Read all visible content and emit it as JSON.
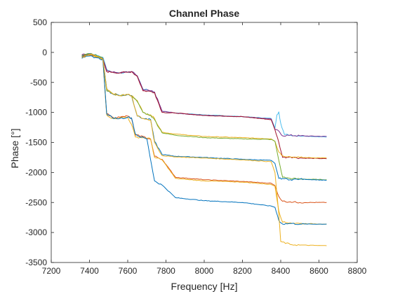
{
  "chart_data": {
    "type": "line",
    "title": "Channel Phase",
    "xlabel": "Frequency [Hz]",
    "ylabel": "Phase [°]",
    "xlim": [
      7200,
      8800
    ],
    "ylim": [
      -3500,
      500
    ],
    "x_ticks": [
      7200,
      7400,
      7600,
      7800,
      8000,
      8200,
      8400,
      8600,
      8800
    ],
    "y_ticks": [
      -3500,
      -3000,
      -2500,
      -2000,
      -1500,
      -1000,
      -500,
      0,
      500
    ],
    "grid": false,
    "box": true,
    "colors": [
      "#0072BD",
      "#D95319",
      "#EDB120",
      "#7E2F8E",
      "#77AC30",
      "#4DBEEE",
      "#A2142F"
    ],
    "series": [
      {
        "color": "#4DBEEE",
        "values": [
          [
            7360,
            -60
          ],
          [
            7400,
            -20
          ],
          [
            7440,
            -50
          ],
          [
            7470,
            -80
          ],
          [
            7490,
            -280
          ],
          [
            7520,
            -330
          ],
          [
            7560,
            -340
          ],
          [
            7600,
            -330
          ],
          [
            7620,
            -320
          ],
          [
            7650,
            -390
          ],
          [
            7680,
            -610
          ],
          [
            7720,
            -640
          ],
          [
            7740,
            -660
          ],
          [
            7780,
            -980
          ],
          [
            7850,
            -1010
          ],
          [
            8000,
            -1040
          ],
          [
            8200,
            -1070
          ],
          [
            8350,
            -1100
          ],
          [
            8370,
            -1260
          ],
          [
            8380,
            -1040
          ],
          [
            8390,
            -990
          ],
          [
            8400,
            -1180
          ],
          [
            8420,
            -1370
          ],
          [
            8500,
            -1390
          ],
          [
            8640,
            -1410
          ]
        ]
      },
      {
        "color": "#7E2F8E",
        "values": [
          [
            7360,
            -40
          ],
          [
            7400,
            -30
          ],
          [
            7440,
            -60
          ],
          [
            7470,
            -100
          ],
          [
            7490,
            -300
          ],
          [
            7520,
            -330
          ],
          [
            7560,
            -340
          ],
          [
            7600,
            -330
          ],
          [
            7620,
            -320
          ],
          [
            7650,
            -390
          ],
          [
            7680,
            -630
          ],
          [
            7720,
            -640
          ],
          [
            7740,
            -660
          ],
          [
            7780,
            -980
          ],
          [
            7850,
            -1010
          ],
          [
            8000,
            -1050
          ],
          [
            8200,
            -1070
          ],
          [
            8350,
            -1110
          ],
          [
            8370,
            -1280
          ],
          [
            8390,
            -1310
          ],
          [
            8410,
            -1390
          ],
          [
            8440,
            -1380
          ],
          [
            8500,
            -1390
          ],
          [
            8640,
            -1400
          ]
        ]
      },
      {
        "color": "#A2142F",
        "values": [
          [
            7360,
            -50
          ],
          [
            7400,
            -20
          ],
          [
            7440,
            -60
          ],
          [
            7470,
            -120
          ],
          [
            7490,
            -320
          ],
          [
            7520,
            -330
          ],
          [
            7560,
            -340
          ],
          [
            7600,
            -330
          ],
          [
            7620,
            -320
          ],
          [
            7650,
            -400
          ],
          [
            7680,
            -640
          ],
          [
            7720,
            -650
          ],
          [
            7740,
            -670
          ],
          [
            7780,
            -1000
          ],
          [
            7850,
            -1010
          ],
          [
            8000,
            -1050
          ],
          [
            8200,
            -1070
          ],
          [
            8350,
            -1120
          ],
          [
            8370,
            -1290
          ],
          [
            8390,
            -1500
          ],
          [
            8410,
            -1750
          ],
          [
            8450,
            -1740
          ],
          [
            8500,
            -1760
          ],
          [
            8640,
            -1770
          ]
        ]
      },
      {
        "color": "#EDB120",
        "values": [
          [
            7360,
            -60
          ],
          [
            7400,
            -30
          ],
          [
            7440,
            -70
          ],
          [
            7470,
            -100
          ],
          [
            7490,
            -600
          ],
          [
            7520,
            -680
          ],
          [
            7560,
            -720
          ],
          [
            7600,
            -700
          ],
          [
            7620,
            -720
          ],
          [
            7650,
            -800
          ],
          [
            7680,
            -1000
          ],
          [
            7720,
            -1040
          ],
          [
            7740,
            -1100
          ],
          [
            7780,
            -1330
          ],
          [
            7850,
            -1360
          ],
          [
            8000,
            -1400
          ],
          [
            8200,
            -1420
          ],
          [
            8350,
            -1440
          ],
          [
            8370,
            -1480
          ],
          [
            8390,
            -1660
          ],
          [
            8410,
            -1720
          ],
          [
            8450,
            -1740
          ],
          [
            8500,
            -1750
          ],
          [
            8640,
            -1760
          ]
        ]
      },
      {
        "color": "#77AC30",
        "values": [
          [
            7360,
            -50
          ],
          [
            7400,
            -20
          ],
          [
            7440,
            -60
          ],
          [
            7470,
            -100
          ],
          [
            7490,
            -640
          ],
          [
            7520,
            -690
          ],
          [
            7560,
            -720
          ],
          [
            7600,
            -700
          ],
          [
            7620,
            -720
          ],
          [
            7650,
            -820
          ],
          [
            7680,
            -1000
          ],
          [
            7720,
            -1050
          ],
          [
            7740,
            -1120
          ],
          [
            7780,
            -1340
          ],
          [
            7850,
            -1380
          ],
          [
            8000,
            -1420
          ],
          [
            8200,
            -1440
          ],
          [
            8350,
            -1450
          ],
          [
            8370,
            -1480
          ],
          [
            8390,
            -1800
          ],
          [
            8410,
            -2080
          ],
          [
            8450,
            -2100
          ],
          [
            8500,
            -2110
          ],
          [
            8640,
            -2120
          ]
        ]
      },
      {
        "color": "#0072BD",
        "values": [
          [
            7360,
            -70
          ],
          [
            7400,
            -20
          ],
          [
            7440,
            -80
          ],
          [
            7470,
            -100
          ],
          [
            7490,
            -600
          ],
          [
            7510,
            -680
          ],
          [
            7560,
            -720
          ],
          [
            7600,
            -700
          ],
          [
            7620,
            -720
          ],
          [
            7650,
            -1060
          ],
          [
            7680,
            -1100
          ],
          [
            7720,
            -1120
          ],
          [
            7740,
            -1480
          ],
          [
            7780,
            -1700
          ],
          [
            7850,
            -1730
          ],
          [
            8000,
            -1750
          ],
          [
            8200,
            -1780
          ],
          [
            8350,
            -1800
          ],
          [
            8370,
            -1850
          ],
          [
            8390,
            -2100
          ],
          [
            8410,
            -2100
          ],
          [
            8450,
            -2120
          ],
          [
            8500,
            -2110
          ],
          [
            8640,
            -2130
          ]
        ]
      },
      {
        "color": "#D95319",
        "values": [
          [
            7360,
            -80
          ],
          [
            7400,
            -40
          ],
          [
            7440,
            -90
          ],
          [
            7470,
            -110
          ],
          [
            7490,
            -1020
          ],
          [
            7520,
            -1080
          ],
          [
            7560,
            -1080
          ],
          [
            7600,
            -1060
          ],
          [
            7620,
            -1100
          ],
          [
            7640,
            -1380
          ],
          [
            7680,
            -1400
          ],
          [
            7720,
            -1450
          ],
          [
            7740,
            -1730
          ],
          [
            7780,
            -1780
          ],
          [
            7850,
            -2080
          ],
          [
            8000,
            -2120
          ],
          [
            8200,
            -2150
          ],
          [
            8350,
            -2180
          ],
          [
            8370,
            -2220
          ],
          [
            8390,
            -2400
          ],
          [
            8410,
            -2480
          ],
          [
            8450,
            -2490
          ],
          [
            8500,
            -2500
          ],
          [
            8640,
            -2500
          ]
        ]
      },
      {
        "color": "#EDB120",
        "values": [
          [
            7360,
            -90
          ],
          [
            7400,
            -50
          ],
          [
            7440,
            -80
          ],
          [
            7470,
            -120
          ],
          [
            7490,
            -1040
          ],
          [
            7520,
            -1100
          ],
          [
            7560,
            -1090
          ],
          [
            7600,
            -1080
          ],
          [
            7620,
            -1200
          ],
          [
            7640,
            -1410
          ],
          [
            7680,
            -1420
          ],
          [
            7720,
            -1440
          ],
          [
            7740,
            -1750
          ],
          [
            7780,
            -1790
          ],
          [
            7850,
            -2100
          ],
          [
            8000,
            -2140
          ],
          [
            8200,
            -2160
          ],
          [
            8350,
            -2200
          ],
          [
            8370,
            -2230
          ],
          [
            8390,
            -2640
          ],
          [
            8410,
            -2830
          ],
          [
            8450,
            -2840
          ],
          [
            8500,
            -2850
          ],
          [
            8640,
            -2860
          ]
        ]
      },
      {
        "color": "#0072BD",
        "values": [
          [
            7360,
            -100
          ],
          [
            7400,
            -60
          ],
          [
            7440,
            -90
          ],
          [
            7470,
            -120
          ],
          [
            7490,
            -1020
          ],
          [
            7520,
            -1090
          ],
          [
            7560,
            -1100
          ],
          [
            7600,
            -1080
          ],
          [
            7620,
            -1090
          ],
          [
            7640,
            -1360
          ],
          [
            7660,
            -1400
          ],
          [
            7700,
            -1440
          ],
          [
            7740,
            -2140
          ],
          [
            7780,
            -2210
          ],
          [
            7850,
            -2420
          ],
          [
            8000,
            -2470
          ],
          [
            8200,
            -2500
          ],
          [
            8350,
            -2560
          ],
          [
            8370,
            -2580
          ],
          [
            8390,
            -2800
          ],
          [
            8410,
            -2860
          ],
          [
            8450,
            -2850
          ],
          [
            8500,
            -2860
          ],
          [
            8640,
            -2860
          ]
        ]
      },
      {
        "color": "#EDB120",
        "values": [
          [
            7360,
            -80
          ],
          [
            7400,
            -30
          ],
          [
            7440,
            -70
          ],
          [
            7470,
            -110
          ],
          [
            7490,
            -610
          ],
          [
            7520,
            -690
          ],
          [
            7560,
            -720
          ],
          [
            7600,
            -700
          ],
          [
            7620,
            -730
          ],
          [
            7650,
            -1060
          ],
          [
            7680,
            -1100
          ],
          [
            7720,
            -1130
          ],
          [
            7740,
            -1500
          ],
          [
            7780,
            -1720
          ],
          [
            7850,
            -1740
          ],
          [
            8000,
            -1760
          ],
          [
            8200,
            -1790
          ],
          [
            8350,
            -1820
          ],
          [
            8370,
            -2000
          ],
          [
            8390,
            -2700
          ],
          [
            8400,
            -3150
          ],
          [
            8450,
            -3200
          ],
          [
            8500,
            -3210
          ],
          [
            8640,
            -3220
          ]
        ]
      }
    ]
  }
}
